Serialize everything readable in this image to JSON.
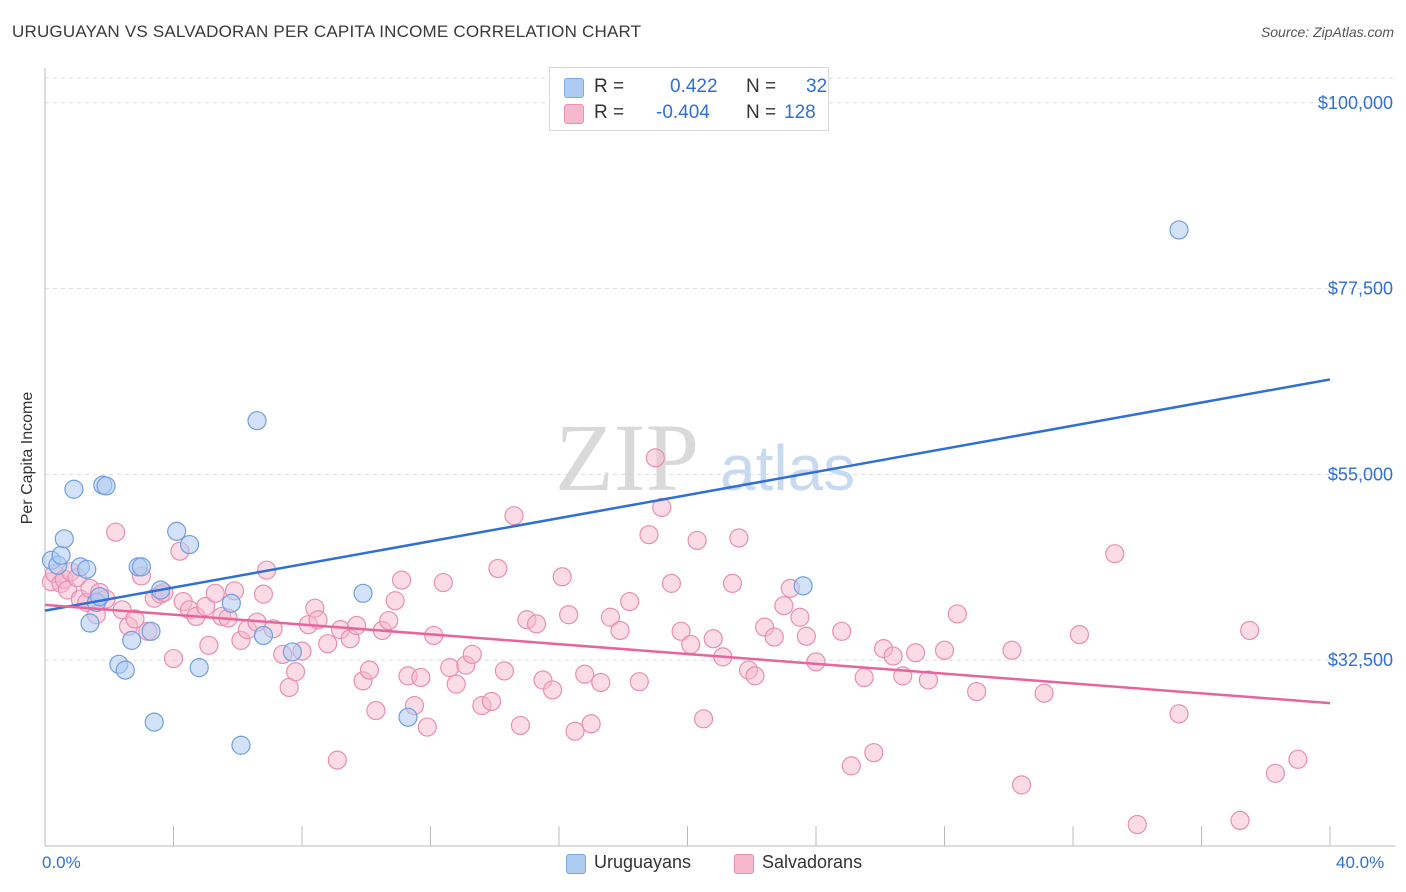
{
  "title": "URUGUAYAN VS SALVADORAN PER CAPITA INCOME CORRELATION CHART",
  "source": "Source: ZipAtlas.com",
  "watermark": {
    "part1": "ZIP",
    "part2": "atlas"
  },
  "legend": {
    "uruguayan": {
      "r_label": "R =",
      "r_value": "0.422",
      "n_label": "N =",
      "n_value": "32"
    },
    "salvadoran": {
      "r_label": "R =",
      "r_value": "-0.404",
      "n_label": "N =",
      "n_value": "128"
    }
  },
  "bottom_legend": {
    "uruguayans": "Uruguayans",
    "salvadorans": "Salvadorans"
  },
  "colors": {
    "blue": "#2f6fd6",
    "blue_fill": "#aecbf2",
    "pink": "#e8649a",
    "pink_fill": "#f7b8cd",
    "axis_text": "#2f6fd6",
    "grid": "#dddddd"
  },
  "chart_data": {
    "type": "scatter",
    "title": "URUGUAYAN VS SALVADORAN PER CAPITA INCOME CORRELATION CHART",
    "xlabel": "",
    "ylabel": "Per Capita Income",
    "xlim": [
      0,
      40
    ],
    "ylim": [
      10000,
      103000
    ],
    "x_tick_labels": [
      "0.0%",
      "40.0%"
    ],
    "y_ticks": [
      32500,
      55000,
      77500,
      100000
    ],
    "y_tick_labels": [
      "$32,500",
      "$55,000",
      "$77,500",
      "$100,000"
    ],
    "grid": true,
    "series": [
      {
        "name": "Uruguayans",
        "color": "#2f6fd6",
        "trend": {
          "x": [
            0,
            40
          ],
          "y": [
            38500,
            66500
          ]
        },
        "points": [
          [
            0.2,
            44600
          ],
          [
            0.4,
            44000
          ],
          [
            0.5,
            45200
          ],
          [
            0.6,
            47200
          ],
          [
            0.9,
            53200
          ],
          [
            1.1,
            43800
          ],
          [
            1.3,
            43500
          ],
          [
            1.4,
            37000
          ],
          [
            1.6,
            39500
          ],
          [
            1.7,
            40200
          ],
          [
            1.8,
            53700
          ],
          [
            1.9,
            53600
          ],
          [
            2.3,
            32000
          ],
          [
            2.5,
            31300
          ],
          [
            2.7,
            34900
          ],
          [
            2.9,
            43800
          ],
          [
            3.0,
            43800
          ],
          [
            3.3,
            36000
          ],
          [
            3.4,
            25000
          ],
          [
            3.6,
            41000
          ],
          [
            4.1,
            48100
          ],
          [
            4.5,
            46500
          ],
          [
            4.8,
            31600
          ],
          [
            5.8,
            39400
          ],
          [
            6.1,
            22200
          ],
          [
            6.6,
            61500
          ],
          [
            6.8,
            35500
          ],
          [
            7.7,
            33500
          ],
          [
            9.9,
            40600
          ],
          [
            11.3,
            25600
          ],
          [
            23.6,
            41500
          ],
          [
            35.3,
            84600
          ]
        ]
      },
      {
        "name": "Salvadorans",
        "color": "#e8649a",
        "trend": {
          "x": [
            0,
            40
          ],
          "y": [
            39200,
            27300
          ]
        },
        "points": [
          [
            0.2,
            42000
          ],
          [
            0.3,
            43000
          ],
          [
            0.5,
            41800
          ],
          [
            0.6,
            42300
          ],
          [
            0.7,
            41000
          ],
          [
            0.8,
            43200
          ],
          [
            1.0,
            42500
          ],
          [
            1.1,
            39900
          ],
          [
            1.3,
            39500
          ],
          [
            1.4,
            41200
          ],
          [
            1.6,
            38000
          ],
          [
            1.7,
            40700
          ],
          [
            1.9,
            39900
          ],
          [
            2.2,
            48000
          ],
          [
            2.4,
            38600
          ],
          [
            2.6,
            36600
          ],
          [
            2.8,
            37500
          ],
          [
            3.0,
            42700
          ],
          [
            3.2,
            36000
          ],
          [
            3.4,
            40000
          ],
          [
            3.6,
            40500
          ],
          [
            3.7,
            40700
          ],
          [
            4.0,
            32700
          ],
          [
            4.2,
            45700
          ],
          [
            4.3,
            39600
          ],
          [
            4.5,
            38600
          ],
          [
            4.7,
            37800
          ],
          [
            5.0,
            39000
          ],
          [
            5.1,
            34300
          ],
          [
            5.3,
            40600
          ],
          [
            5.5,
            37800
          ],
          [
            5.7,
            37600
          ],
          [
            5.9,
            40900
          ],
          [
            6.1,
            34900
          ],
          [
            6.3,
            36200
          ],
          [
            6.6,
            37100
          ],
          [
            6.8,
            40500
          ],
          [
            6.9,
            43400
          ],
          [
            7.1,
            36300
          ],
          [
            7.4,
            33200
          ],
          [
            7.6,
            29200
          ],
          [
            7.8,
            31100
          ],
          [
            8.0,
            33600
          ],
          [
            8.2,
            36800
          ],
          [
            8.4,
            38800
          ],
          [
            8.5,
            37400
          ],
          [
            8.8,
            34500
          ],
          [
            9.1,
            20400
          ],
          [
            9.2,
            36200
          ],
          [
            9.5,
            35100
          ],
          [
            9.7,
            36700
          ],
          [
            9.9,
            30000
          ],
          [
            10.1,
            31300
          ],
          [
            10.3,
            26400
          ],
          [
            10.5,
            36100
          ],
          [
            10.7,
            37300
          ],
          [
            10.9,
            39700
          ],
          [
            11.1,
            42200
          ],
          [
            11.3,
            30600
          ],
          [
            11.5,
            27000
          ],
          [
            11.7,
            30400
          ],
          [
            11.9,
            24400
          ],
          [
            12.1,
            35500
          ],
          [
            12.4,
            41900
          ],
          [
            12.6,
            31600
          ],
          [
            12.8,
            29600
          ],
          [
            13.1,
            31900
          ],
          [
            13.3,
            33200
          ],
          [
            13.6,
            27000
          ],
          [
            13.9,
            27500
          ],
          [
            14.1,
            43600
          ],
          [
            14.3,
            31200
          ],
          [
            14.6,
            50000
          ],
          [
            14.8,
            24600
          ],
          [
            15.0,
            37400
          ],
          [
            15.3,
            36900
          ],
          [
            15.5,
            30100
          ],
          [
            15.8,
            28900
          ],
          [
            16.1,
            42600
          ],
          [
            16.3,
            38000
          ],
          [
            16.5,
            23900
          ],
          [
            16.8,
            30800
          ],
          [
            17.0,
            24800
          ],
          [
            17.3,
            29800
          ],
          [
            17.6,
            37700
          ],
          [
            17.9,
            36100
          ],
          [
            18.2,
            39600
          ],
          [
            18.5,
            29900
          ],
          [
            18.8,
            47700
          ],
          [
            19.0,
            57000
          ],
          [
            19.2,
            51000
          ],
          [
            19.5,
            41800
          ],
          [
            19.8,
            36000
          ],
          [
            20.1,
            34400
          ],
          [
            20.3,
            47000
          ],
          [
            20.5,
            25400
          ],
          [
            20.8,
            35100
          ],
          [
            21.1,
            32900
          ],
          [
            21.4,
            41800
          ],
          [
            21.6,
            47300
          ],
          [
            21.9,
            31300
          ],
          [
            22.1,
            30600
          ],
          [
            22.4,
            36500
          ],
          [
            22.7,
            35300
          ],
          [
            23.0,
            39100
          ],
          [
            23.2,
            41200
          ],
          [
            23.5,
            37700
          ],
          [
            23.7,
            35400
          ],
          [
            24.0,
            32300
          ],
          [
            24.8,
            36000
          ],
          [
            25.1,
            19700
          ],
          [
            25.5,
            30400
          ],
          [
            25.8,
            21300
          ],
          [
            26.1,
            33900
          ],
          [
            26.4,
            33000
          ],
          [
            26.7,
            30600
          ],
          [
            27.1,
            33400
          ],
          [
            27.5,
            30100
          ],
          [
            28.0,
            33700
          ],
          [
            28.4,
            38100
          ],
          [
            29.0,
            28700
          ],
          [
            30.1,
            33700
          ],
          [
            30.4,
            17400
          ],
          [
            31.1,
            28500
          ],
          [
            32.2,
            35600
          ],
          [
            33.3,
            45400
          ],
          [
            34.0,
            12600
          ],
          [
            35.3,
            26000
          ],
          [
            37.2,
            13100
          ],
          [
            37.5,
            36100
          ],
          [
            38.3,
            18800
          ],
          [
            39.0,
            20500
          ]
        ]
      }
    ]
  }
}
